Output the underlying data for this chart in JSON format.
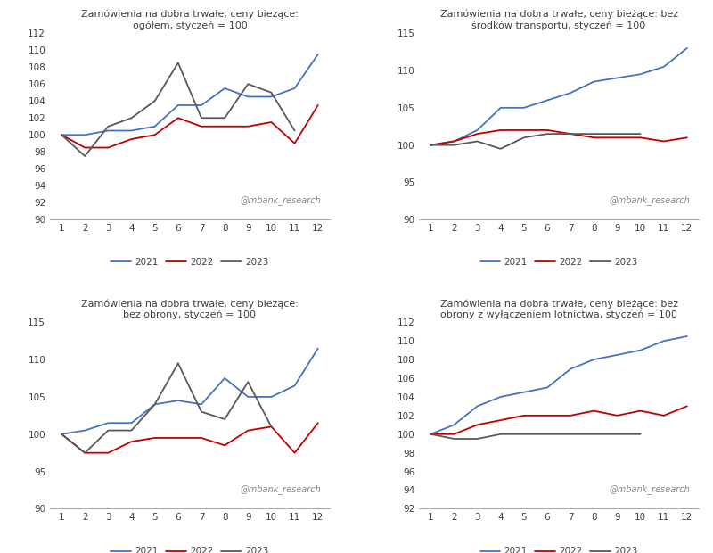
{
  "charts": [
    {
      "title": "Zamówienia na dobra trwałe, ceny bieżące:\nogółem, styczeń = 100",
      "ylim": [
        90,
        112
      ],
      "yticks": [
        90,
        92,
        94,
        96,
        98,
        100,
        102,
        104,
        106,
        108,
        110,
        112
      ],
      "series": {
        "2021": [
          100,
          100,
          100.5,
          100.5,
          101,
          103.5,
          103.5,
          105.5,
          104.5,
          104.5,
          105.5,
          109.5
        ],
        "2022": [
          100,
          98.5,
          98.5,
          99.5,
          100,
          102,
          101,
          101,
          101,
          101.5,
          99,
          103.5
        ],
        "2023": [
          100,
          97.5,
          101,
          102,
          104,
          108.5,
          102,
          102,
          106,
          105,
          100.5,
          null
        ]
      }
    },
    {
      "title": "Zamówienia na dobra trwałe, ceny bieżące: bez\nśrodków transportu, styczeń = 100",
      "ylim": [
        90,
        115
      ],
      "yticks": [
        90,
        95,
        100,
        105,
        110,
        115
      ],
      "series": {
        "2021": [
          100,
          100.5,
          102,
          105,
          105,
          106,
          107,
          108.5,
          109,
          109.5,
          110.5,
          113
        ],
        "2022": [
          100,
          100.5,
          101.5,
          102,
          102,
          102,
          101.5,
          101,
          101,
          101,
          100.5,
          101
        ],
        "2023": [
          100,
          100,
          100.5,
          99.5,
          101,
          101.5,
          101.5,
          101.5,
          101.5,
          101.5,
          null,
          null
        ]
      }
    },
    {
      "title": "Zamówienia na dobra trwałe, ceny bieżące:\nbez obrony, styczeń = 100",
      "ylim": [
        90,
        115
      ],
      "yticks": [
        90,
        95,
        100,
        105,
        110,
        115
      ],
      "series": {
        "2021": [
          100,
          100.5,
          101.5,
          101.5,
          104,
          104.5,
          104,
          107.5,
          105,
          105,
          106.5,
          111.5
        ],
        "2022": [
          100,
          97.5,
          97.5,
          99,
          99.5,
          99.5,
          99.5,
          98.5,
          100.5,
          101,
          97.5,
          101.5
        ],
        "2023": [
          100,
          97.5,
          100.5,
          100.5,
          104,
          109.5,
          103,
          102,
          107,
          101,
          null,
          null
        ]
      }
    },
    {
      "title": "Zamówienia na dobra trwałe, ceny bieżące: bez\nobrony z wyłączeniem lotnictwa, styczeń = 100",
      "ylim": [
        92,
        112
      ],
      "yticks": [
        92,
        94,
        96,
        98,
        100,
        102,
        104,
        106,
        108,
        110,
        112
      ],
      "series": {
        "2021": [
          100,
          101,
          103,
          104,
          104.5,
          105,
          107,
          108,
          108.5,
          109,
          110,
          110.5
        ],
        "2022": [
          100,
          100,
          101,
          101.5,
          102,
          102,
          102,
          102.5,
          102,
          102.5,
          102,
          103
        ],
        "2023": [
          100,
          99.5,
          99.5,
          100,
          100,
          100,
          100,
          100,
          100,
          100,
          null,
          null
        ]
      }
    }
  ],
  "colors": {
    "2021": "#4472C4",
    "2022": "#C00000",
    "2023": "#595959"
  },
  "watermark": "@mbank_research",
  "bg_color": "#FFFFFF",
  "months": [
    1,
    2,
    3,
    4,
    5,
    6,
    7,
    8,
    9,
    10,
    11,
    12
  ]
}
